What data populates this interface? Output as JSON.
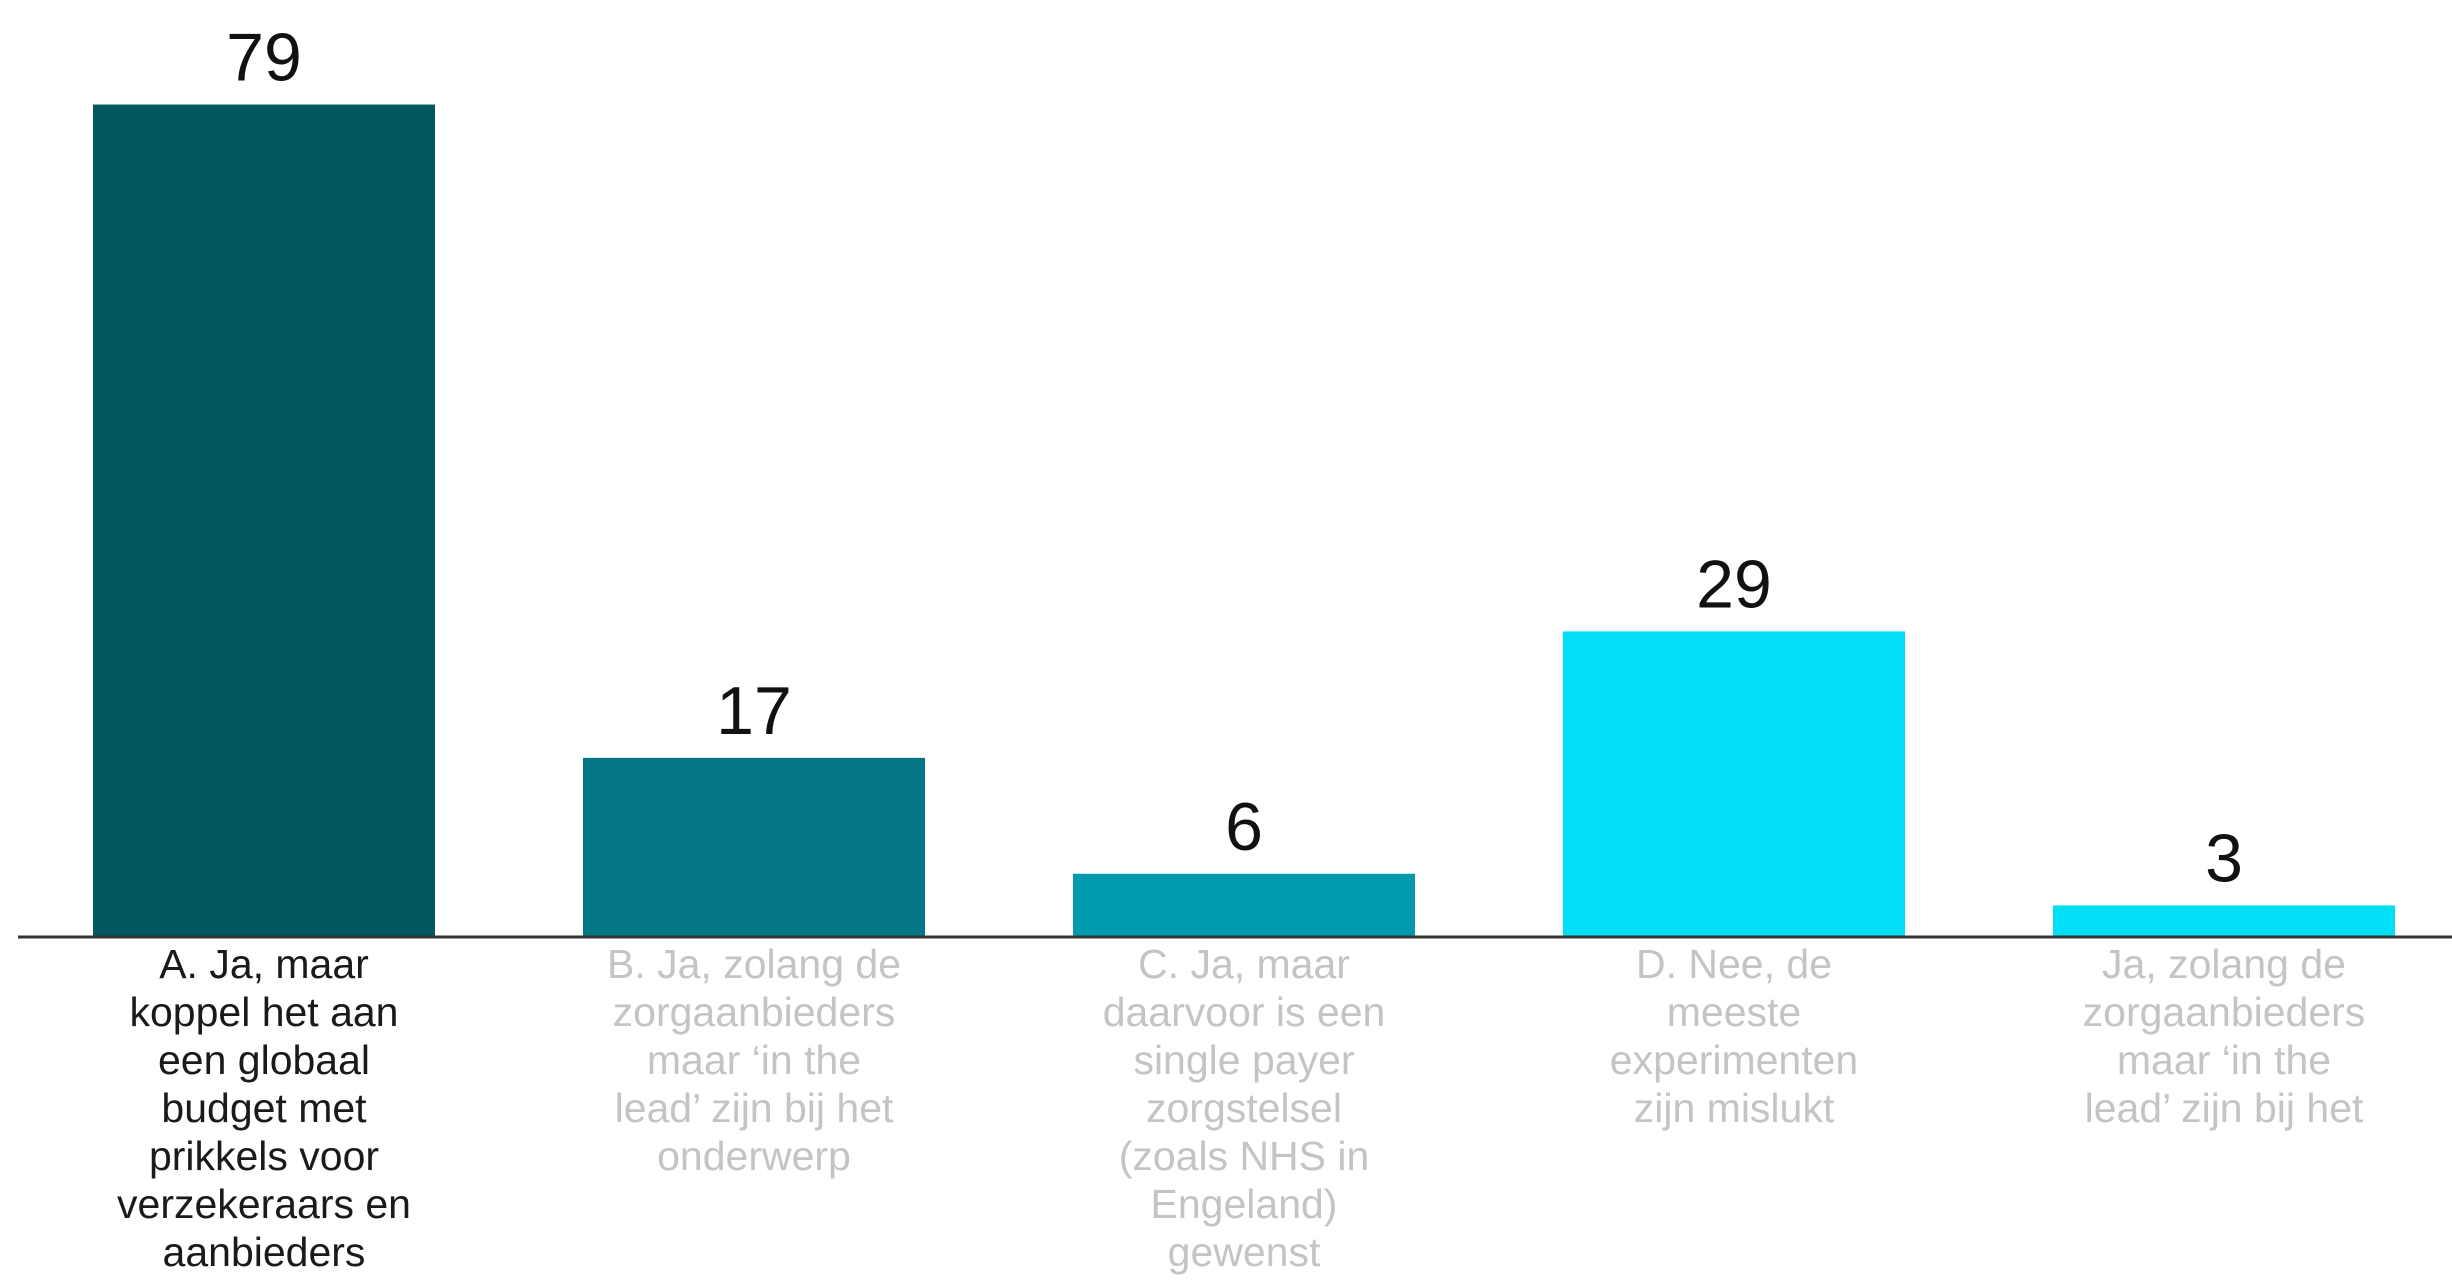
{
  "chart_data": {
    "type": "bar",
    "categories": [
      "A. Ja, maar koppel het aan een globaal budget met prikkels voor verzekeraars en aanbieders",
      "B. Ja, zolang de zorgaanbieders maar ‘in the lead’ zijn bij het onderwerp",
      "C. Ja, maar daarvoor is een single payer zorgstelsel (zoals NHS in Engeland) gewenst",
      "D. Nee, de meeste experimenten zijn mislukt",
      "Ja, zolang de zorgaanbieders maar ‘in the lead’ zijn bij het"
    ],
    "category_lines": [
      [
        "A. Ja, maar",
        "koppel het aan",
        "een globaal",
        "budget met",
        "prikkels voor",
        "verzekeraars en",
        "aanbieders"
      ],
      [
        "B. Ja, zolang de",
        "zorgaanbieders",
        "maar ‘in the",
        "lead’ zijn bij het",
        "onderwerp"
      ],
      [
        "C. Ja, maar",
        "daarvoor is een",
        "single payer",
        "zorgstelsel",
        "(zoals NHS in",
        "Engeland)",
        "gewenst"
      ],
      [
        "D. Nee, de",
        "meeste",
        "experimenten",
        "zijn mislukt"
      ],
      [
        "Ja, zolang de",
        "zorgaanbieders",
        "maar ‘in the",
        "lead’ zijn bij het"
      ]
    ],
    "values": [
      79,
      17,
      6,
      29,
      3
    ],
    "value_labels": [
      "79",
      "17",
      "6",
      "29",
      "3"
    ],
    "colors": [
      "#03575f",
      "#027684",
      "#0099ad",
      "#00dff5",
      "#00dff5"
    ],
    "highlight_index": 0,
    "title": "",
    "xlabel": "",
    "ylabel": "",
    "ylim": [
      0,
      80
    ],
    "grid": false,
    "legend": "none",
    "baseline_color": "#333333"
  }
}
